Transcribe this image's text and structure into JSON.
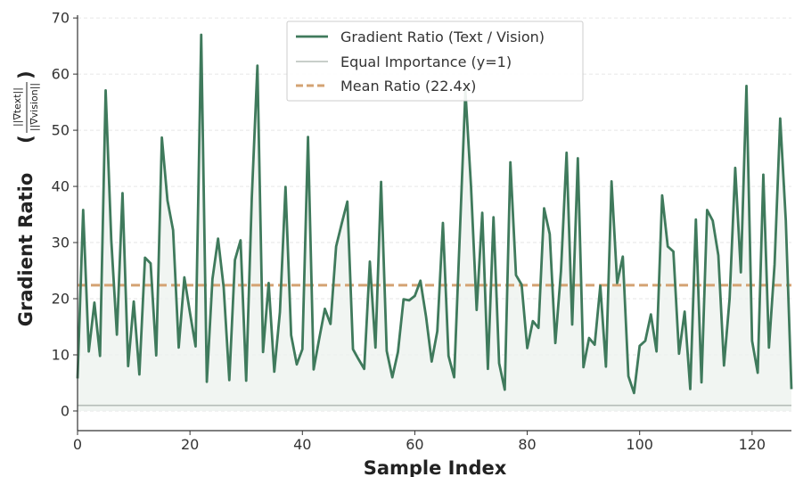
{
  "chart_data": {
    "type": "line",
    "title": "",
    "xlabel": "Sample Index",
    "ylabel": "Gradient Ratio",
    "ylabel_fraction_numerator": "||∇text||",
    "ylabel_fraction_denominator": "||∇vision||",
    "xlim": [
      0,
      127
    ],
    "ylim": [
      -3.5,
      70.5
    ],
    "xticks": [
      "0",
      "20",
      "40",
      "60",
      "80",
      "100",
      "120"
    ],
    "yticks": [
      "0",
      "10",
      "20",
      "30",
      "40",
      "50",
      "60",
      "70"
    ],
    "grid": "horizontal dashed",
    "legend_position": "top-center",
    "colors": {
      "series": "#3f7a5c",
      "fill": "#eef2ef",
      "reference": "#b5bdb8",
      "mean": "#d4a373",
      "axis": "#333333",
      "grid": "#e6e6e6"
    },
    "series": [
      {
        "name": "Gradient Ratio (Text / Vision)",
        "style": "solid",
        "x": [
          0,
          1,
          2,
          3,
          4,
          5,
          6,
          7,
          8,
          9,
          10,
          11,
          12,
          13,
          14,
          15,
          16,
          17,
          18,
          19,
          20,
          21,
          22,
          23,
          24,
          25,
          26,
          27,
          28,
          29,
          30,
          31,
          32,
          33,
          34,
          35,
          36,
          37,
          38,
          39,
          40,
          41,
          42,
          43,
          44,
          45,
          46,
          47,
          48,
          49,
          50,
          51,
          52,
          53,
          54,
          55,
          56,
          57,
          58,
          59,
          60,
          61,
          62,
          63,
          64,
          65,
          66,
          67,
          68,
          69,
          70,
          71,
          72,
          73,
          74,
          75,
          76,
          77,
          78,
          79,
          80,
          81,
          82,
          83,
          84,
          85,
          86,
          87,
          88,
          89,
          90,
          91,
          92,
          93,
          94,
          95,
          96,
          97,
          98,
          99,
          100,
          101,
          102,
          103,
          104,
          105,
          106,
          107,
          108,
          109,
          110,
          111,
          112,
          113,
          114,
          115,
          116,
          117,
          118,
          119,
          120,
          121,
          122,
          123,
          124,
          125,
          126,
          127
        ],
        "values": [
          5.8,
          35.8,
          10.6,
          19.3,
          9.8,
          57.1,
          30.5,
          13.6,
          38.8,
          8.0,
          19.5,
          6.5,
          27.3,
          26.3,
          9.9,
          48.7,
          37.5,
          32.2,
          11.3,
          23.8,
          17.5,
          11.5,
          67.0,
          5.2,
          23.5,
          30.7,
          22.0,
          5.5,
          26.9,
          30.4,
          5.4,
          38.0,
          61.5,
          10.5,
          22.8,
          7.0,
          17.6,
          39.9,
          13.5,
          8.3,
          11.0,
          48.8,
          7.4,
          12.9,
          18.2,
          15.5,
          29.3,
          33.4,
          37.3,
          11.0,
          9.2,
          7.5,
          26.6,
          11.3,
          40.8,
          10.7,
          6.0,
          10.5,
          19.9,
          19.7,
          20.5,
          23.2,
          16.8,
          8.8,
          14.2,
          33.5,
          9.8,
          6.0,
          31.3,
          57.0,
          40.0,
          18.0,
          35.3,
          7.5,
          34.5,
          8.5,
          3.8,
          44.3,
          24.2,
          22.5,
          11.2,
          16.0,
          14.8,
          36.1,
          31.5,
          12.1,
          24.9,
          46.0,
          15.4,
          45.0,
          7.8,
          13.0,
          11.8,
          22.3,
          7.9,
          40.9,
          22.8,
          27.5,
          6.2,
          3.2,
          11.6,
          12.5,
          17.2,
          10.6,
          38.4,
          29.3,
          28.4,
          10.2,
          17.7,
          3.9,
          34.1,
          5.1,
          35.8,
          33.9,
          27.7,
          8.1,
          20.0,
          43.3,
          24.7,
          57.9,
          12.5,
          6.8,
          42.1,
          11.3,
          26.1,
          52.1,
          33.9,
          3.9
        ]
      },
      {
        "name": "Equal Importance (y=1)",
        "style": "solid-thin",
        "values": [
          1,
          1
        ]
      },
      {
        "name": "Mean Ratio (22.4x)",
        "style": "dashed",
        "values": [
          22.4,
          22.4
        ]
      }
    ]
  }
}
